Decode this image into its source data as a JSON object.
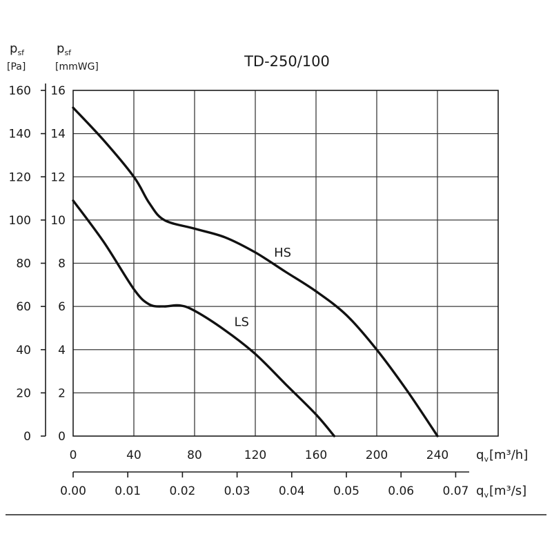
{
  "chart_data": {
    "type": "line",
    "title": "TD-250/100",
    "y_left": {
      "label_main": "p",
      "label_sub": "sf",
      "unit": "[Pa]",
      "ticks": [
        "160",
        "140",
        "120",
        "100",
        "80",
        "60",
        "40",
        "20",
        "0"
      ],
      "ylim": [
        0,
        160
      ]
    },
    "y_inner": {
      "label_main": "p",
      "label_sub": "sf",
      "unit": "[mmWG]",
      "ticks": [
        "16",
        "14",
        "12",
        "10",
        "8",
        "6",
        "4",
        "2",
        "0"
      ],
      "ylim": [
        0,
        16
      ]
    },
    "x_main": {
      "label_main": "q",
      "label_sub": "v",
      "unit": "[m³/h]",
      "ticks": [
        "0",
        "40",
        "80",
        "120",
        "160",
        "200",
        "240"
      ],
      "xlim": [
        0,
        280
      ]
    },
    "x_secondary": {
      "label_main": "q",
      "label_sub": "v",
      "unit": "[m³/s]",
      "ticks": [
        "0.00",
        "0.01",
        "0.02",
        "0.03",
        "0.04",
        "0.05",
        "0.06",
        "0.07"
      ]
    },
    "grid": true,
    "series": [
      {
        "name": "HS",
        "x": [
          0,
          20,
          40,
          50,
          60,
          80,
          100,
          120,
          140,
          160,
          180,
          200,
          220,
          240
        ],
        "y": [
          15.2,
          13.7,
          12.0,
          10.8,
          10.0,
          9.6,
          9.2,
          8.5,
          7.6,
          6.7,
          5.6,
          4.0,
          2.1,
          0
        ]
      },
      {
        "name": "LS",
        "x": [
          0,
          20,
          40,
          50,
          60,
          70,
          80,
          100,
          120,
          140,
          160,
          172
        ],
        "y": [
          10.9,
          9.0,
          6.8,
          6.1,
          6.0,
          6.05,
          5.8,
          4.9,
          3.8,
          2.4,
          1.0,
          0
        ]
      }
    ]
  }
}
